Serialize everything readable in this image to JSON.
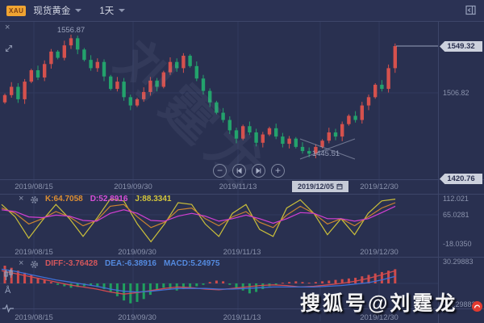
{
  "toolbar": {
    "symbol_badge": "XAU",
    "symbol_name": "现货黄金",
    "timeframe": "1天"
  },
  "main_chart": {
    "peak_label": "1556.87",
    "trough_label": "1445.51",
    "price_axis": {
      "last_price": "1549.32",
      "mid_tick": "1506.82",
      "low_tag": "1420.76"
    },
    "dates": [
      "2019/08/15",
      "2019/09/30",
      "2019/11/13"
    ],
    "selected_date": "2019/12/05",
    "end_date": "2019/12/30"
  },
  "kdj_panel": {
    "k_label": "K:64.7058",
    "d_label": "D:52.8916",
    "j_label": "J:88.3341",
    "ticks": [
      "112.021",
      "65.0281",
      "-18.0350"
    ],
    "dates": [
      "2019/08/15",
      "2019/09/30",
      "2019/11/13",
      "2019/12/30"
    ]
  },
  "macd_panel": {
    "diff_label": "DIFF:-3.76428",
    "dea_label": "DEA:-6.38916",
    "macd_label": "MACD:5.24975",
    "ticks": [
      "30.29883",
      "-30.29883"
    ],
    "dates": [
      "2019/08/15",
      "2019/09/30",
      "2019/11/13",
      "2019/12/30"
    ]
  },
  "watermarks": {
    "diagonal_text": "刘霆龙",
    "footer_text": "搜狐号@刘霆龙"
  },
  "colors": {
    "up": "#d5514d",
    "down": "#23a26c",
    "k": "#cc8430",
    "d": "#d23fd2",
    "j": "#cabf3a",
    "diff": "#d14b50",
    "dea": "#4070d6",
    "hist_up": "#cf4b4b",
    "hist_down": "#1fa05e",
    "grid": "#313a5e",
    "separator": "#3d4569",
    "tag_bg": "#ccd1dd",
    "badge_bg": "#f0a432"
  },
  "chart_data": {
    "type": "candlestick",
    "symbol": "现货黄金 (XAU)",
    "interval": "1天",
    "x_dates": [
      "2019/08/15",
      "2019/09/30",
      "2019/11/13",
      "2019/12/05",
      "2019/12/30"
    ],
    "price_range_shown": [
      1420.76,
      1556.87
    ],
    "key_prices": {
      "peak": 1556.87,
      "trough": 1445.51,
      "last": 1549.32,
      "mid_gridline": 1506.82,
      "axis_low": 1420.76
    },
    "closes_approx": [
      1502,
      1510,
      1498,
      1515,
      1526,
      1519,
      1532,
      1544,
      1538,
      1550,
      1556.87,
      1546,
      1536,
      1528,
      1534,
      1520,
      1508,
      1515,
      1500,
      1492,
      1498,
      1505,
      1516,
      1510,
      1524,
      1534,
      1528,
      1540,
      1530,
      1518,
      1506,
      1495,
      1485,
      1478,
      1468,
      1460,
      1472,
      1466,
      1456,
      1464,
      1470,
      1462,
      1455,
      1460,
      1452,
      1448,
      1445.51,
      1452,
      1458,
      1466,
      1462,
      1474,
      1482,
      1478,
      1492,
      1500,
      1512,
      1508,
      1528,
      1549.32
    ],
    "kdj": {
      "current": {
        "k": 64.7058,
        "d": 52.8916,
        "j": 88.3341
      },
      "axis_ticks": [
        112.021,
        65.0281,
        -18.035
      ],
      "k": [
        85,
        70,
        40,
        55,
        75,
        60,
        35,
        50,
        90,
        95,
        60,
        30,
        45,
        80,
        85,
        55,
        35,
        60,
        75,
        45,
        30,
        65,
        90,
        70,
        40,
        55,
        35,
        60,
        85,
        100
      ],
      "d": [
        80,
        75,
        60,
        58,
        65,
        62,
        50,
        48,
        70,
        80,
        70,
        50,
        48,
        62,
        70,
        62,
        48,
        55,
        65,
        55,
        42,
        55,
        72,
        70,
        55,
        55,
        48,
        55,
        72,
        90
      ],
      "j": [
        95,
        60,
        0,
        50,
        95,
        55,
        5,
        55,
        110,
        105,
        40,
        -10,
        40,
        100,
        95,
        40,
        5,
        70,
        95,
        25,
        5,
        85,
        108,
        70,
        10,
        55,
        10,
        70,
        105,
        110
      ]
    },
    "macd": {
      "current": {
        "diff": -3.76428,
        "dea": -6.38916,
        "macd": 5.24975
      },
      "axis_ticks": [
        30.29883,
        -30.29883
      ],
      "hist": [
        25,
        22,
        18,
        15,
        12,
        8,
        5,
        2,
        -2,
        -4,
        -6,
        -5,
        -4,
        -3,
        -5,
        -8,
        -12,
        -18,
        -24,
        -28,
        -26,
        -22,
        -16,
        -10,
        -6,
        -8,
        -10,
        -8,
        -6,
        -4,
        -2,
        2,
        4,
        3,
        -2,
        -6,
        -10,
        -14,
        -12,
        -8,
        -4,
        -2,
        1,
        2,
        3,
        2,
        1,
        2,
        3,
        4,
        5,
        6,
        7,
        8,
        10,
        12,
        14,
        16,
        18,
        20
      ],
      "diff": [
        18,
        14,
        10,
        6,
        2,
        -2,
        -5,
        -8,
        -12,
        -15,
        -13,
        -10,
        -7,
        -5,
        -6,
        -8,
        -9,
        -7,
        -5,
        -3,
        -2,
        -3,
        -5,
        -4,
        -2,
        0,
        3,
        7,
        12,
        18
      ],
      "dea": [
        20,
        17,
        13,
        9,
        5,
        2,
        -1,
        -4,
        -8,
        -11,
        -12,
        -11,
        -9,
        -7,
        -7,
        -7,
        -8,
        -8,
        -7,
        -6,
        -5,
        -5,
        -5,
        -5,
        -4,
        -3,
        -1,
        1,
        5,
        10
      ]
    }
  }
}
